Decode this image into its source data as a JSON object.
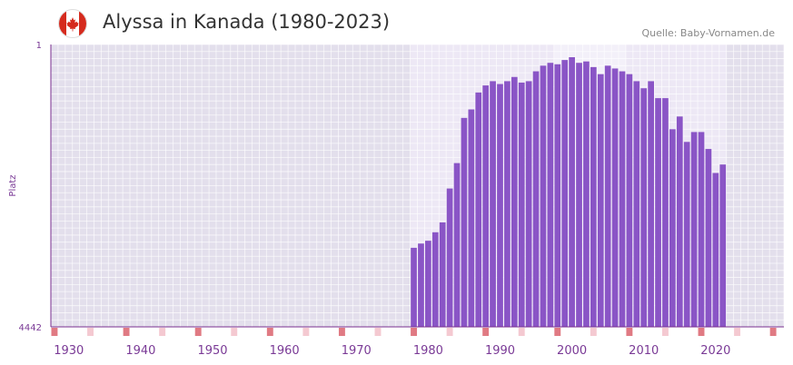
{
  "header": {
    "title": "Alyssa in Kanada (1980-2023)",
    "source": "Quelle: Baby-Vornamen.de",
    "flag_icon": "canada-flag-icon"
  },
  "colors": {
    "bar": "#8a55c6",
    "plot_bg_outer": "#e3dfec",
    "plot_bg_inner": "#ede8f5",
    "plot_bg_highlight": "#f3f0f9",
    "grid": "#ffffff",
    "axis_line": "#7a2f8f",
    "tick_text": "#7a3a96",
    "decade_marker": "#e07a83",
    "half_decade_marker": "#f4c9d1",
    "flag_red": "#d52b1e"
  },
  "chart_data": {
    "type": "bar",
    "title": "Alyssa in Kanada (1980-2023)",
    "xlabel": "",
    "ylabel": "Platz",
    "y_axis_top_label": "1",
    "y_axis_bottom_label": "4442",
    "ylim": [
      4442,
      1
    ],
    "x_range": [
      1928,
      2029
    ],
    "x_ticks": [
      "1930",
      "1940",
      "1950",
      "1960",
      "1970",
      "1980",
      "1990",
      "2000",
      "2010",
      "2020"
    ],
    "data_start_year": 1978,
    "years": [
      1978,
      1979,
      1980,
      1981,
      1982,
      1983,
      1984,
      1985,
      1986,
      1987,
      1988,
      1989,
      1990,
      1991,
      1992,
      1993,
      1994,
      1995,
      1996,
      1997,
      1998,
      1999,
      2000,
      2001,
      2002,
      2003,
      2004,
      2005,
      2006,
      2007,
      2008,
      2009,
      2010,
      2011,
      2012,
      2013,
      2014,
      2015,
      2016,
      2017,
      2018,
      2019,
      2020,
      2021
    ],
    "bar_top_fraction": [
      0.28,
      0.295,
      0.305,
      0.335,
      0.37,
      0.49,
      0.58,
      0.74,
      0.77,
      0.83,
      0.855,
      0.87,
      0.86,
      0.87,
      0.885,
      0.865,
      0.87,
      0.905,
      0.925,
      0.935,
      0.93,
      0.945,
      0.955,
      0.935,
      0.94,
      0.92,
      0.895,
      0.925,
      0.915,
      0.905,
      0.895,
      0.87,
      0.845,
      0.87,
      0.81,
      0.81,
      0.7,
      0.745,
      0.655,
      0.69,
      0.69,
      0.63,
      0.545,
      0.575
    ]
  }
}
